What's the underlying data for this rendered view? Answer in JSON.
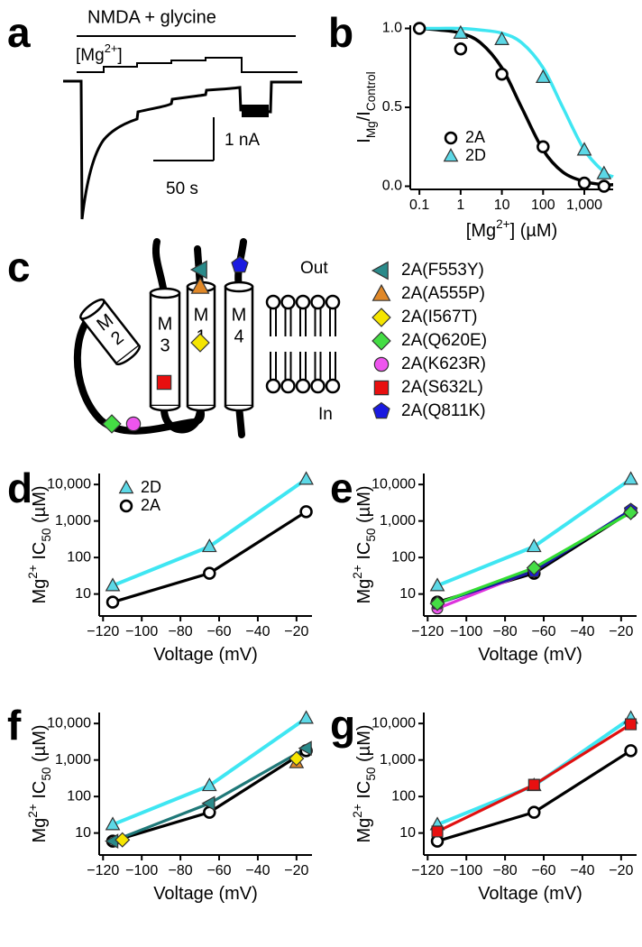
{
  "chart_data": [
    {
      "type": "trace",
      "label": "a",
      "stimulus_label": "NMDA + glycine",
      "mg_label": [
        {
          "text": "[Mg"
        },
        {
          "text": "2+",
          "shift": "super"
        },
        {
          "text": "]"
        }
      ],
      "scale_y_label": "1 nA",
      "scale_x_label": "50 s"
    },
    {
      "type": "line",
      "label": "b",
      "xlabel": [
        {
          "text": "[Mg"
        },
        {
          "text": "2+",
          "shift": "super"
        },
        {
          "text": "] (µM)"
        }
      ],
      "ylabel": [
        {
          "text": "I"
        },
        {
          "text": "Mg",
          "shift": "sub"
        },
        {
          "text": "/I"
        },
        {
          "text": "Control",
          "shift": "sub"
        }
      ],
      "xscale": "log",
      "xlim": [
        0.06,
        5000
      ],
      "xticks": [
        0.1,
        1,
        10,
        100,
        {
          "value": 1000,
          "label": "1,000"
        }
      ],
      "ylim": [
        -0.02,
        1.02
      ],
      "yticks": [
        {
          "value": 0,
          "label": "0.0"
        },
        {
          "value": 0.5,
          "label": "0.5"
        },
        {
          "value": 1,
          "label": "1.0"
        }
      ],
      "legend": "lower-left",
      "series": [
        {
          "name": "2A",
          "color": "#000000",
          "marker": "circle",
          "marker_fill": "#ffffff",
          "line": false,
          "x": [
            0.1,
            1,
            10,
            100,
            1000,
            3000
          ],
          "values": [
            1.0,
            0.87,
            0.71,
            0.25,
            0.02,
            0.0
          ],
          "fit": {
            "x": [
              0.1,
              0.3,
              1,
              3,
              10,
              30,
              100,
              300,
              1000,
              3000,
              5000
            ],
            "values": [
              1.0,
              0.99,
              0.97,
              0.91,
              0.75,
              0.5,
              0.23,
              0.09,
              0.03,
              0.01,
              0.01
            ]
          }
        },
        {
          "name": "2D",
          "color": "#3fe6f2",
          "marker": "triangle",
          "marker_fill": "#5cd8e6",
          "line": false,
          "x": [
            1,
            10,
            100,
            1000,
            3000
          ],
          "values": [
            0.97,
            0.93,
            0.69,
            0.23,
            0.08
          ],
          "fit": {
            "x": [
              0.1,
              0.3,
              1,
              3,
              10,
              30,
              100,
              300,
              1000,
              3000,
              5000
            ],
            "values": [
              1.0,
              1.0,
              1.0,
              0.99,
              0.97,
              0.91,
              0.75,
              0.5,
              0.23,
              0.09,
              0.06
            ]
          }
        }
      ]
    },
    {
      "type": "line",
      "label": "d",
      "xlabel": [
        {
          "text": "Voltage (mV)"
        }
      ],
      "ylabel": [
        {
          "text": "Mg"
        },
        {
          "text": "2+",
          "shift": "super"
        },
        {
          "text": " IC"
        },
        {
          "text": "50",
          "shift": "sub"
        },
        {
          "text": " (µM)"
        }
      ],
      "xlim": [
        -122,
        -12
      ],
      "xticks": [
        {
          "value": -120,
          "label": "−120"
        },
        {
          "value": -100,
          "label": "−100"
        },
        {
          "value": -80,
          "label": "−80"
        },
        {
          "value": -60,
          "label": "−60"
        },
        {
          "value": -40,
          "label": "−40"
        },
        {
          "value": -20,
          "label": "−20"
        }
      ],
      "yscale": "log",
      "ylim": [
        2.5,
        20000
      ],
      "yticks": [
        10,
        100,
        {
          "value": 1000,
          "label": "1,000"
        },
        {
          "value": 10000,
          "label": "10,000"
        }
      ],
      "legend": "upper-left",
      "series": [
        {
          "name": "2D",
          "color": "#3fe6f2",
          "marker": "triangle",
          "marker_fill": "#5cd8e6",
          "x": [
            -115,
            -65,
            -15
          ],
          "values": [
            17,
            200,
            14000
          ]
        },
        {
          "name": "2A",
          "color": "#000000",
          "marker": "circle",
          "marker_fill": "#ffffff",
          "x": [
            -115,
            -65,
            -15
          ],
          "values": [
            6,
            37,
            1800
          ]
        }
      ]
    },
    {
      "type": "line",
      "label": "e",
      "xlabel": [
        {
          "text": "Voltage (mV)"
        }
      ],
      "ylabel": [
        {
          "text": "Mg"
        },
        {
          "text": "2+",
          "shift": "super"
        },
        {
          "text": " IC"
        },
        {
          "text": "50",
          "shift": "sub"
        },
        {
          "text": " (µM)"
        }
      ],
      "xlim": [
        -122,
        -12
      ],
      "xticks": [
        {
          "value": -120,
          "label": "−120"
        },
        {
          "value": -100,
          "label": "−100"
        },
        {
          "value": -80,
          "label": "−80"
        },
        {
          "value": -60,
          "label": "−60"
        },
        {
          "value": -40,
          "label": "−40"
        },
        {
          "value": -20,
          "label": "−20"
        }
      ],
      "yscale": "log",
      "ylim": [
        2.5,
        20000
      ],
      "yticks": [
        10,
        100,
        {
          "value": 1000,
          "label": "1,000"
        },
        {
          "value": 10000,
          "label": "10,000"
        }
      ],
      "series": [
        {
          "color": "#3fe6f2",
          "marker": "triangle",
          "marker_fill": "#5cd8e6",
          "x": [
            -115,
            -65,
            -15
          ],
          "values": [
            17,
            200,
            14000
          ]
        },
        {
          "color": "#000000",
          "marker": "circle",
          "marker_fill": "#ffffff",
          "x": [
            -115,
            -65,
            -15
          ],
          "values": [
            6,
            37,
            1800
          ]
        },
        {
          "color": "#dd33dd",
          "marker": "circle",
          "marker_fill": "#ee55ee",
          "x": [
            -115,
            -65,
            -15
          ],
          "values": [
            4,
            45,
            1900
          ]
        },
        {
          "color": "#1a1aa0",
          "marker": "pentagon",
          "marker_fill": "#1a1ae0",
          "x": [
            -115,
            -65,
            -15
          ],
          "values": [
            5.5,
            42,
            2000
          ]
        },
        {
          "color": "#33dd33",
          "marker": "diamond",
          "marker_fill": "#44dd44",
          "x": [
            -115,
            -65,
            -15
          ],
          "values": [
            5.5,
            52,
            1700
          ]
        }
      ]
    },
    {
      "type": "line",
      "label": "f",
      "xlabel": [
        {
          "text": "Voltage (mV)"
        }
      ],
      "ylabel": [
        {
          "text": "Mg"
        },
        {
          "text": "2+",
          "shift": "super"
        },
        {
          "text": " IC"
        },
        {
          "text": "50",
          "shift": "sub"
        },
        {
          "text": " (µM)"
        }
      ],
      "xlim": [
        -122,
        -12
      ],
      "xticks": [
        {
          "value": -120,
          "label": "−120"
        },
        {
          "value": -100,
          "label": "−100"
        },
        {
          "value": -80,
          "label": "−80"
        },
        {
          "value": -60,
          "label": "−60"
        },
        {
          "value": -40,
          "label": "−40"
        },
        {
          "value": -20,
          "label": "−20"
        }
      ],
      "yscale": "log",
      "ylim": [
        2.5,
        20000
      ],
      "yticks": [
        10,
        100,
        {
          "value": 1000,
          "label": "1,000"
        },
        {
          "value": 10000,
          "label": "10,000"
        }
      ],
      "series": [
        {
          "color": "#3fe6f2",
          "marker": "triangle",
          "marker_fill": "#5cd8e6",
          "x": [
            -115,
            -65,
            -15
          ],
          "values": [
            17,
            200,
            14000
          ]
        },
        {
          "color": "#000000",
          "marker": "circle",
          "marker_fill": "#ffffff",
          "x": [
            -115,
            -65,
            -15
          ],
          "values": [
            6,
            37,
            1800
          ]
        },
        {
          "color": "#1f7878",
          "marker": "triangle-left",
          "marker_fill": "#2a8a8a",
          "x": [
            -115,
            -65,
            -15
          ],
          "values": [
            6,
            65,
            2100
          ]
        },
        {
          "color": "#e08020",
          "marker": "triangle",
          "marker_fill": "#e08828",
          "line": false,
          "x": [
            -20
          ],
          "values": [
            850
          ]
        },
        {
          "color": "#f5e500",
          "marker": "diamond",
          "marker_fill": "#f5e500",
          "line": false,
          "x": [
            -110,
            -20
          ],
          "values": [
            6.5,
            1100
          ]
        }
      ]
    },
    {
      "type": "line",
      "label": "g",
      "xlabel": [
        {
          "text": "Voltage (mV)"
        }
      ],
      "ylabel": [
        {
          "text": "Mg"
        },
        {
          "text": "2+",
          "shift": "super"
        },
        {
          "text": " IC"
        },
        {
          "text": "50",
          "shift": "sub"
        },
        {
          "text": " (µM)"
        }
      ],
      "xlim": [
        -122,
        -12
      ],
      "xticks": [
        {
          "value": -120,
          "label": "−120"
        },
        {
          "value": -100,
          "label": "−100"
        },
        {
          "value": -80,
          "label": "−80"
        },
        {
          "value": -60,
          "label": "−60"
        },
        {
          "value": -40,
          "label": "−40"
        },
        {
          "value": -20,
          "label": "−20"
        }
      ],
      "yscale": "log",
      "ylim": [
        2.5,
        20000
      ],
      "yticks": [
        10,
        100,
        {
          "value": 1000,
          "label": "1,000"
        },
        {
          "value": 10000,
          "label": "10,000"
        }
      ],
      "series": [
        {
          "color": "#000000",
          "marker": "circle",
          "marker_fill": "#ffffff",
          "x": [
            -115,
            -65,
            -15
          ],
          "values": [
            6,
            37,
            1800
          ]
        },
        {
          "color": "#3fe6f2",
          "marker": "triangle",
          "marker_fill": "#5cd8e6",
          "x": [
            -115,
            -65,
            -15
          ],
          "values": [
            17,
            200,
            14000
          ]
        },
        {
          "color": "#e01010",
          "marker": "square",
          "marker_fill": "#e81010",
          "x": [
            -115,
            -65,
            -15
          ],
          "values": [
            11,
            210,
            9500
          ]
        }
      ]
    }
  ],
  "diagram": {
    "label": "c",
    "helices": [
      [
        {
          "text": "M"
        },
        {
          "text": "3"
        }
      ],
      [
        {
          "text": "M"
        },
        {
          "text": "1"
        }
      ],
      [
        {
          "text": "M"
        },
        {
          "text": "4"
        }
      ],
      [
        {
          "text": "M"
        },
        {
          "text": "2"
        }
      ]
    ],
    "out_label": "Out",
    "in_label": "In",
    "legend": [
      {
        "label": "2A(F553Y)",
        "color": "#2a8a8a",
        "marker": "triangle-left"
      },
      {
        "label": "2A(A555P)",
        "color": "#e08828",
        "marker": "triangle"
      },
      {
        "label": "2A(I567T)",
        "color": "#f5e500",
        "marker": "diamond"
      },
      {
        "label": "2A(Q620E)",
        "color": "#44dd44",
        "marker": "diamond"
      },
      {
        "label": "2A(K623R)",
        "color": "#ee55ee",
        "marker": "circle"
      },
      {
        "label": "2A(S632L)",
        "color": "#e81010",
        "marker": "square"
      },
      {
        "label": "2A(Q811K)",
        "color": "#1a1ae0",
        "marker": "pentagon"
      }
    ]
  }
}
